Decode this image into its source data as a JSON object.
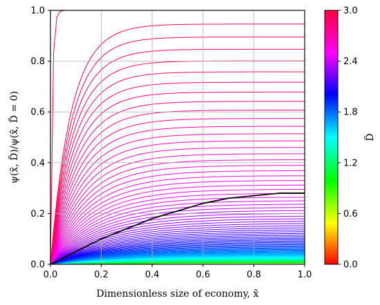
{
  "chart_data": {
    "type": "line",
    "title": "",
    "xlabel": "Dimensionless size of economy, x̃",
    "ylabel": "ψ(x̃, D̃)/ψ(x̃, D̃ = 0)",
    "xlim": [
      0.0,
      1.0
    ],
    "ylim": [
      0.0,
      1.0
    ],
    "x_ticks": [
      "0.0",
      "0.2",
      "0.4",
      "0.6",
      "0.8",
      "1.0"
    ],
    "y_ticks": [
      "0.0",
      "0.2",
      "0.4",
      "0.6",
      "0.8",
      "1.0"
    ],
    "grid": true,
    "curve_family": {
      "description_parameter": "D̃",
      "d_min": 0.0,
      "d_max": 3.0,
      "count": 120
    },
    "series": [
      {
        "name": "",
        "color": "#000000",
        "x": [
          0.0,
          0.1,
          0.2,
          0.3,
          0.4,
          0.5,
          0.6,
          0.7,
          0.8,
          0.9,
          1.0
        ],
        "values": [
          0.0,
          0.05,
          0.1,
          0.14,
          0.18,
          0.21,
          0.24,
          0.26,
          0.27,
          0.28,
          0.28
        ]
      }
    ],
    "colorbar": {
      "label": "D̃",
      "range": [
        0.0,
        3.0
      ],
      "ticks": [
        "0.0",
        "0.6",
        "1.2",
        "1.8",
        "2.4",
        "3.0"
      ],
      "colors": [
        "#ff0000",
        "#ffff00",
        "#00ff00",
        "#00ffff",
        "#0000ff",
        "#ff00ff",
        "#ff0040"
      ]
    }
  }
}
